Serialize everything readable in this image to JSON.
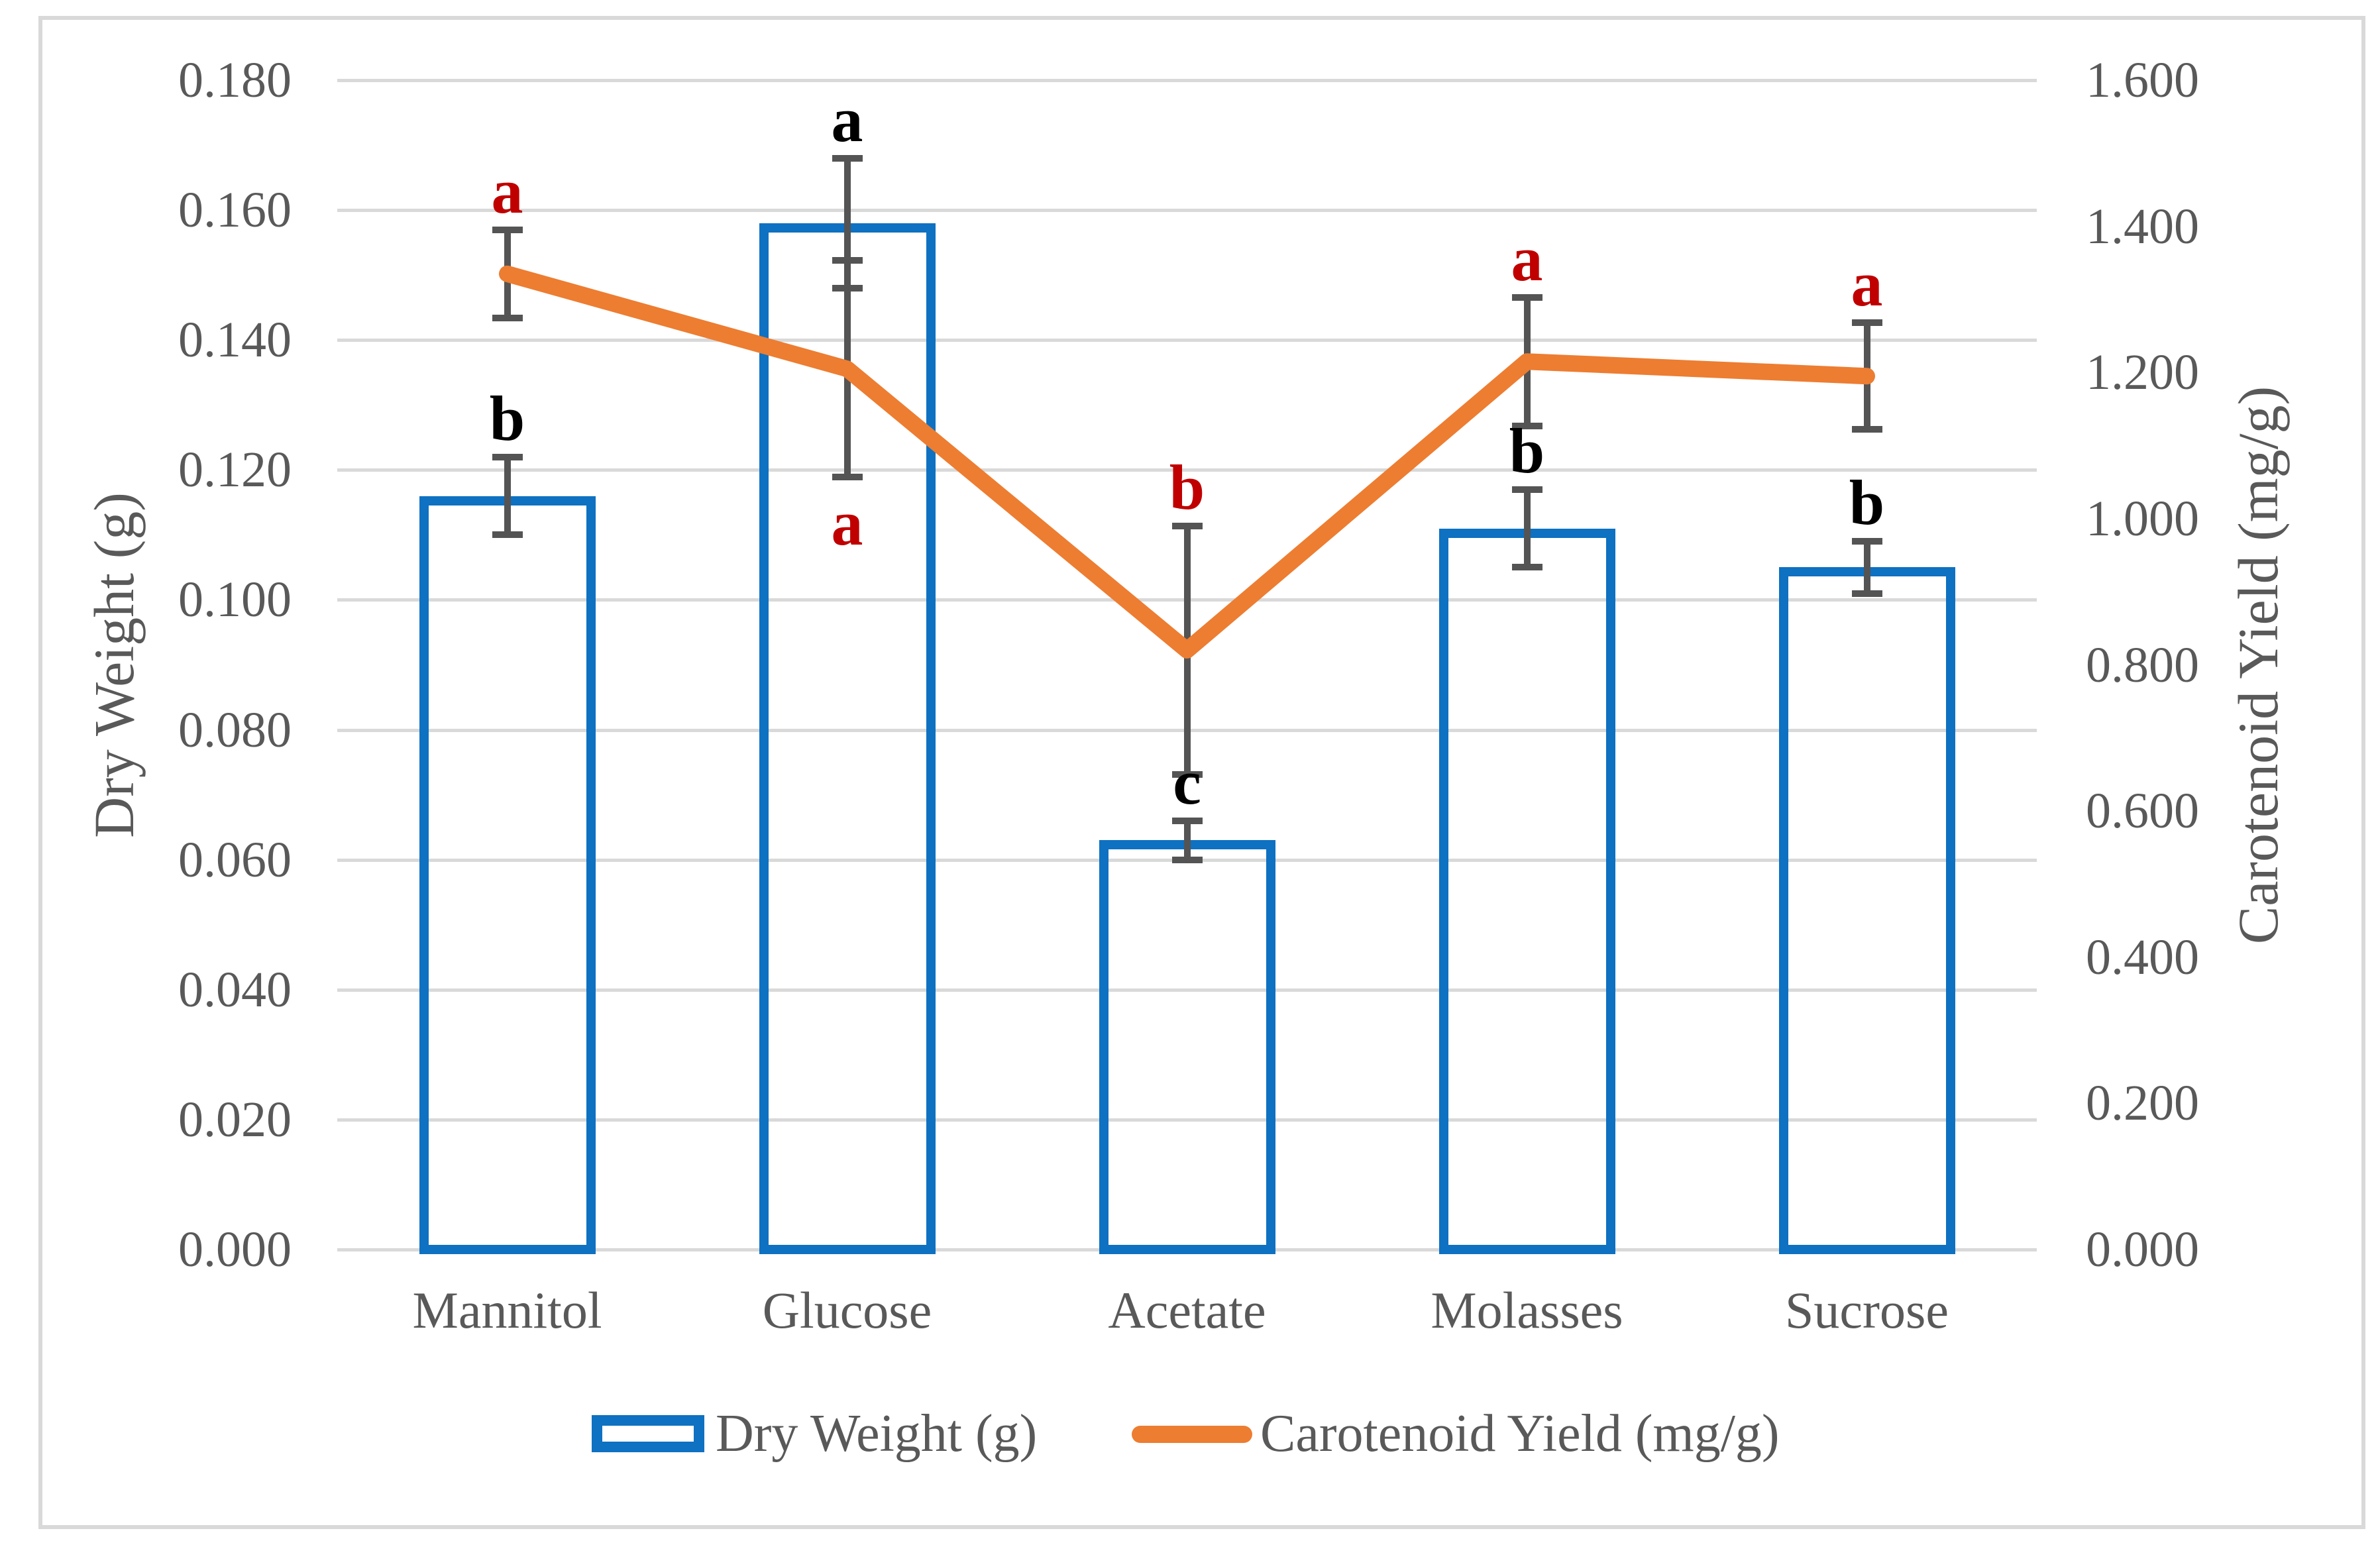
{
  "chart_data": {
    "type": "combo",
    "categories": [
      "Mannitol",
      "Glucose",
      "Acetate",
      "Molasses",
      "Sucrose"
    ],
    "left_axis": {
      "title": "Dry Weight (g)",
      "min": 0.0,
      "max": 0.18,
      "step": 0.02,
      "tick_labels": [
        "0.000",
        "0.020",
        "0.040",
        "0.060",
        "0.080",
        "0.100",
        "0.120",
        "0.140",
        "0.160",
        "0.180"
      ]
    },
    "right_axis": {
      "title": "Carotenoid Yield (mg/g)",
      "min": 0.0,
      "max": 1.6,
      "step": 0.2,
      "tick_labels": [
        "0.000",
        "0.200",
        "0.400",
        "0.600",
        "0.800",
        "1.000",
        "1.200",
        "1.400",
        "1.600"
      ]
    },
    "grid": true,
    "legend_position": "bottom",
    "series": [
      {
        "name": "Dry Weight (g)",
        "type": "bar",
        "axis": "left",
        "color": "#0E71C1",
        "fill": "none",
        "values": [
          0.116,
          0.158,
          0.063,
          0.111,
          0.105
        ],
        "errors": [
          0.006,
          0.01,
          0.003,
          0.006,
          0.004
        ],
        "sig_letters": [
          "b",
          "a",
          "c",
          "b",
          "b"
        ],
        "sig_letter_color": "#000000"
      },
      {
        "name": "Carotenoid Yield (mg/g)",
        "type": "line",
        "axis": "right",
        "color": "#ED7D31",
        "values": [
          1.335,
          1.205,
          0.82,
          1.215,
          1.195
        ],
        "errors": [
          0.06,
          0.148,
          0.17,
          0.088,
          0.073
        ],
        "sig_letters": [
          "a",
          "a",
          "b",
          "a",
          "a"
        ],
        "sig_letter_placement": [
          "above",
          "below",
          "above",
          "above",
          "above"
        ],
        "sig_letter_color": "#C00000"
      }
    ],
    "error_bar_color": "#545454",
    "gridline_color": "#D9D9D9",
    "text_color": "#595959"
  }
}
